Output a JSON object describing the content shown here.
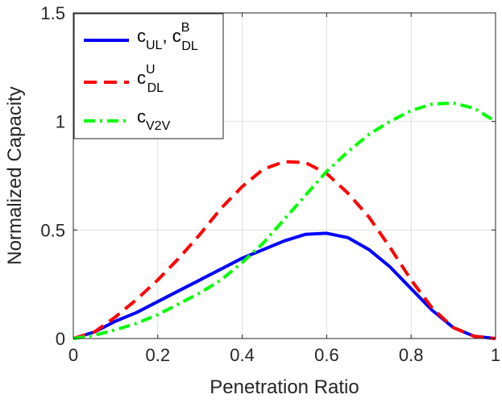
{
  "chart_data": {
    "type": "line",
    "title": "",
    "xlabel": "Penetration Ratio",
    "ylabel": "Normalized Capacity",
    "xlim": [
      0,
      1
    ],
    "ylim": [
      0,
      1.5
    ],
    "x_ticks": [
      0,
      0.2,
      0.4,
      0.6,
      0.8,
      1
    ],
    "x_tick_labels": [
      "0",
      "0.2",
      "0.4",
      "0.6",
      "0.8",
      "1"
    ],
    "y_ticks": [
      0,
      0.5,
      1,
      1.5
    ],
    "y_tick_labels": [
      "0",
      "0.5",
      "1",
      "1.5"
    ],
    "grid": true,
    "legend_position": "top-left",
    "x": [
      0,
      0.05,
      0.1,
      0.15,
      0.2,
      0.25,
      0.3,
      0.35,
      0.4,
      0.45,
      0.5,
      0.55,
      0.6,
      0.65,
      0.7,
      0.75,
      0.8,
      0.85,
      0.9,
      0.95,
      1
    ],
    "series": [
      {
        "name": "c_UL, c_DL^B",
        "legend": {
          "base": "c",
          "sub": "UL",
          "sep": ", ",
          "base2": "c",
          "sup2": "B",
          "sub2": "DL"
        },
        "color": "#0000ff",
        "dash": "solid",
        "values": [
          0,
          0.03,
          0.08,
          0.12,
          0.17,
          0.22,
          0.27,
          0.32,
          0.37,
          0.41,
          0.45,
          0.48,
          0.485,
          0.465,
          0.41,
          0.33,
          0.23,
          0.13,
          0.05,
          0.01,
          0
        ]
      },
      {
        "name": "c_DL^U",
        "legend": {
          "base": "c",
          "sup": "U",
          "sub": "DL"
        },
        "color": "#ff0000",
        "dash": "dashed",
        "values": [
          0,
          0.03,
          0.1,
          0.18,
          0.27,
          0.37,
          0.48,
          0.6,
          0.7,
          0.78,
          0.815,
          0.81,
          0.76,
          0.67,
          0.56,
          0.42,
          0.27,
          0.14,
          0.05,
          0.01,
          0
        ]
      },
      {
        "name": "c_V2V",
        "legend": {
          "base": "c",
          "sub": "V2V"
        },
        "color": "#00ff00",
        "dash": "dashdot",
        "values": [
          0,
          0.015,
          0.04,
          0.07,
          0.11,
          0.16,
          0.21,
          0.27,
          0.35,
          0.44,
          0.55,
          0.66,
          0.77,
          0.86,
          0.94,
          1.0,
          1.05,
          1.08,
          1.085,
          1.06,
          1.0
        ]
      }
    ]
  }
}
